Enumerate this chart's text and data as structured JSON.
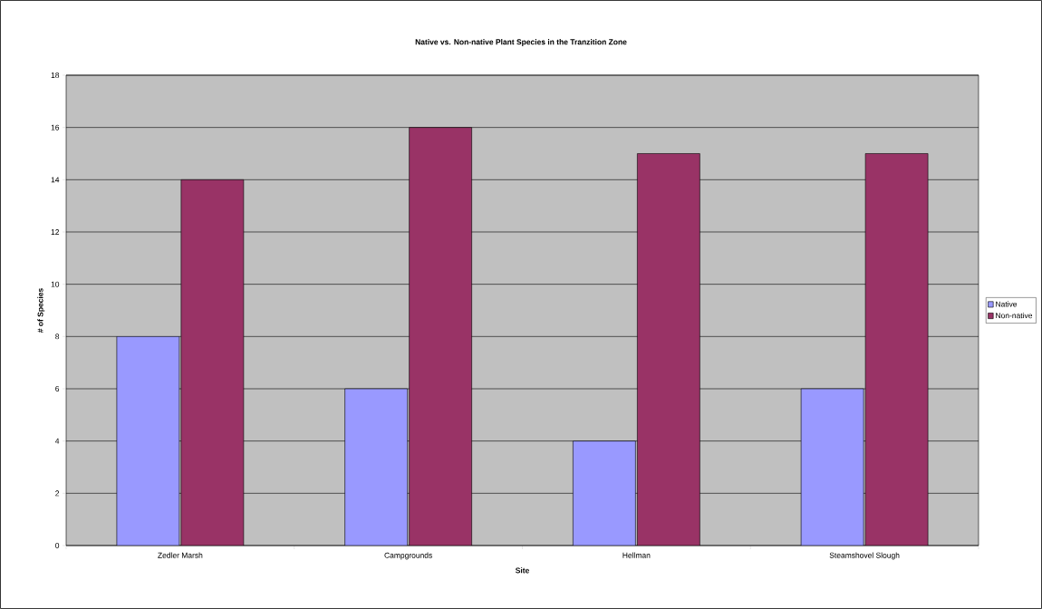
{
  "chart_data": {
    "type": "bar",
    "title": "Native vs. Non-native Plant Species in the Tranzition Zone",
    "xlabel": "Site",
    "ylabel": "# of Species",
    "categories": [
      "Zedler Marsh",
      "Campgrounds",
      "Hellman",
      "Steamshovel Slough"
    ],
    "series": [
      {
        "name": "Native",
        "color": "#9999ff",
        "values": [
          8,
          6,
          4,
          6
        ]
      },
      {
        "name": "Non-native",
        "color": "#993366",
        "values": [
          14,
          16,
          15,
          15
        ]
      }
    ],
    "ylim": [
      0,
      18
    ],
    "yticks": [
      0,
      2,
      4,
      6,
      8,
      10,
      12,
      14,
      16,
      18
    ],
    "grid": "y",
    "legend": "right"
  }
}
